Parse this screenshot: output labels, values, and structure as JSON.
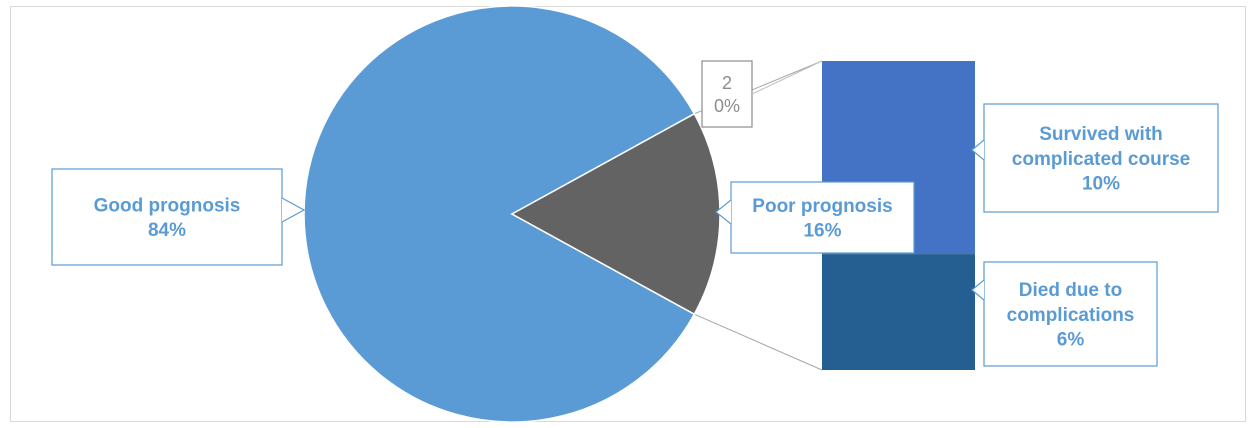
{
  "chart_data": {
    "type": "bar-of-pie",
    "title": "",
    "pie": {
      "slices": [
        {
          "name": "Good prognosis",
          "percent_label": "84%",
          "value": 84,
          "color": "#5b9bd5"
        },
        {
          "name": "Poor prognosis",
          "percent_label": "16%",
          "value": 16,
          "color": "#636363"
        }
      ],
      "extra_label": {
        "name": "2",
        "percent_label": "0%"
      }
    },
    "bar": {
      "segments": [
        {
          "name": "Survived with complicated course",
          "lines": [
            "Survived with",
            "complicated course"
          ],
          "percent_label": "10%",
          "value": 10,
          "color": "#4472c4"
        },
        {
          "name": "Died due to complications",
          "lines": [
            "Died due to",
            "complications"
          ],
          "percent_label": "6%",
          "value": 6,
          "color": "#255e91"
        }
      ]
    },
    "label_color": "#5b9bd5",
    "grid": false,
    "legend": "none"
  }
}
